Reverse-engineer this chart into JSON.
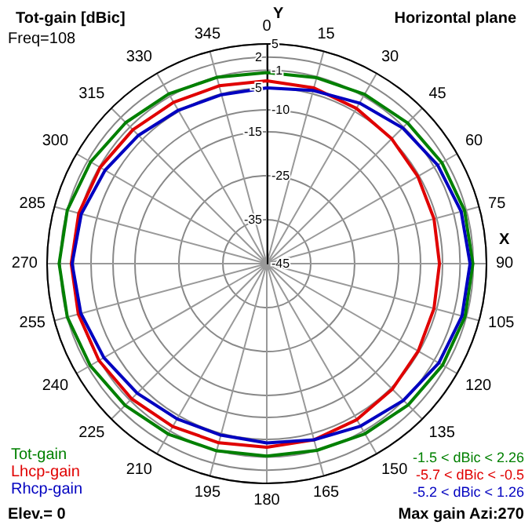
{
  "chart_data": {
    "type": "radar",
    "title": "Tot-gain [dBic]",
    "subtitle": "Horizontal plane",
    "categories": [
      "0",
      "15",
      "30",
      "45",
      "60",
      "75",
      "90",
      "105",
      "120",
      "135",
      "150",
      "165",
      "180",
      "195",
      "210",
      "225",
      "240",
      "255",
      "270",
      "285",
      "300",
      "315",
      "330",
      "345"
    ],
    "ylim": [
      -45,
      5
    ],
    "yticks": [
      5,
      2,
      -1,
      -5,
      -10,
      -15,
      -25,
      -35,
      -45
    ],
    "grid": true,
    "legend": "bottom left",
    "marker": "none",
    "line_style": "solid",
    "series": [
      {
        "name": "Tot-gain",
        "color": "#008000",
        "values": [
          -1.5,
          -1.2,
          -0.5,
          0.3,
          1.0,
          1.6,
          1.9,
          1.7,
          1.2,
          0.5,
          -0.3,
          -1.0,
          -1.2,
          -0.9,
          -0.2,
          0.6,
          1.4,
          2.0,
          2.26,
          2.0,
          1.3,
          0.4,
          -0.4,
          -1.1
        ]
      },
      {
        "name": "Lhcp-gain",
        "color": "#e00000",
        "values": [
          -3.4,
          -3.6,
          -4.2,
          -4.8,
          -5.3,
          -5.6,
          -5.7,
          -5.6,
          -5.2,
          -4.6,
          -4.0,
          -3.5,
          -3.2,
          -2.8,
          -2.2,
          -1.5,
          -0.9,
          -0.6,
          -0.5,
          -0.7,
          -1.2,
          -1.9,
          -2.6,
          -3.1
        ]
      },
      {
        "name": "Rhcp-gain",
        "color": "#0000c0",
        "values": [
          -5.0,
          -4.2,
          -2.8,
          -1.3,
          -0.1,
          0.8,
          1.26,
          1.0,
          0.2,
          -1.0,
          -2.3,
          -3.5,
          -4.2,
          -4.6,
          -4.2,
          -3.3,
          -2.2,
          -1.2,
          -0.7,
          -1.3,
          -2.5,
          -3.7,
          -4.7,
          -5.2
        ]
      }
    ],
    "annotations": [
      "-1.5 < dBic < 2.26",
      "-5.7 < dBic < -0.5",
      "-5.2 < dBic < 1.26",
      "Freq=108",
      "Elev.= 0",
      "Max gain Azi:270",
      "Y",
      "X"
    ]
  }
}
